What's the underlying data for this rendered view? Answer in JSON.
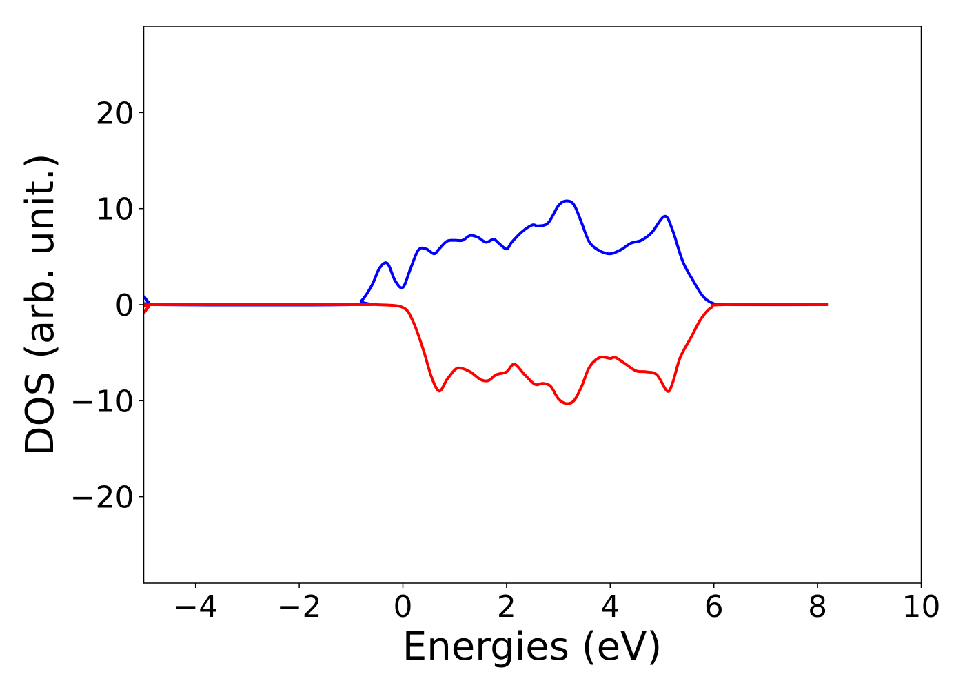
{
  "chart_data": {
    "type": "line",
    "title": "",
    "xlabel": "Energies (eV)",
    "ylabel": "DOS (arb. unit.)",
    "xlim": [
      -5,
      10
    ],
    "ylim": [
      -29,
      29
    ],
    "xticks": [
      -4,
      -2,
      0,
      2,
      4,
      6,
      8,
      10
    ],
    "xtick_labels": [
      "−4",
      "−2",
      "0",
      "2",
      "4",
      "6",
      "8",
      "10"
    ],
    "yticks": [
      20,
      10,
      0,
      -10,
      -20
    ],
    "ytick_labels": [
      "20",
      "10",
      "0",
      "−10",
      "−20"
    ],
    "grid": false,
    "legend": "none",
    "series": [
      {
        "color": "#0000ff",
        "x": [
          -5.0,
          -4.9,
          -4.8,
          -1.0,
          -0.8,
          -0.6,
          -0.45,
          -0.3,
          -0.15,
          0.0,
          0.15,
          0.3,
          0.45,
          0.6,
          0.7,
          0.85,
          1.0,
          1.15,
          1.3,
          1.45,
          1.6,
          1.75,
          1.85,
          2.0,
          2.1,
          2.3,
          2.5,
          2.6,
          2.8,
          3.0,
          3.15,
          3.3,
          3.45,
          3.6,
          3.8,
          4.0,
          4.2,
          4.4,
          4.6,
          4.8,
          5.05,
          5.2,
          5.4,
          5.6,
          5.8,
          6.0,
          6.2,
          8.2
        ],
        "y": [
          0.9,
          0.2,
          0.0,
          0.0,
          0.4,
          2.0,
          3.8,
          4.3,
          2.5,
          1.8,
          3.8,
          5.7,
          5.8,
          5.3,
          5.8,
          6.6,
          6.7,
          6.7,
          7.2,
          7.0,
          6.5,
          6.8,
          6.4,
          5.8,
          6.5,
          7.6,
          8.3,
          8.2,
          8.5,
          10.3,
          10.8,
          10.4,
          8.5,
          6.5,
          5.6,
          5.3,
          5.7,
          6.4,
          6.7,
          7.5,
          9.2,
          7.8,
          4.5,
          2.5,
          0.8,
          0.1,
          0.0,
          0.0
        ]
      },
      {
        "color": "#ff0000",
        "x": [
          -5.0,
          -4.9,
          -4.8,
          -1.0,
          -0.5,
          0.0,
          0.2,
          0.4,
          0.55,
          0.7,
          0.85,
          1.0,
          1.1,
          1.3,
          1.5,
          1.65,
          1.8,
          2.0,
          2.15,
          2.35,
          2.55,
          2.7,
          2.85,
          3.0,
          3.15,
          3.3,
          3.45,
          3.6,
          3.8,
          4.0,
          4.1,
          4.3,
          4.5,
          4.7,
          4.9,
          5.1,
          5.2,
          5.35,
          5.55,
          5.75,
          5.95,
          6.2,
          8.2
        ],
        "y": [
          -0.9,
          -0.2,
          0.0,
          0.0,
          0.0,
          -0.3,
          -1.8,
          -4.8,
          -7.5,
          -9.0,
          -7.8,
          -6.8,
          -6.6,
          -7.0,
          -7.8,
          -7.9,
          -7.3,
          -7.0,
          -6.2,
          -7.3,
          -8.3,
          -8.2,
          -8.5,
          -9.8,
          -10.3,
          -10.0,
          -8.5,
          -6.5,
          -5.5,
          -5.6,
          -5.5,
          -6.2,
          -6.9,
          -7.0,
          -7.3,
          -9.0,
          -8.2,
          -5.5,
          -3.5,
          -1.5,
          -0.3,
          0.0,
          0.0
        ]
      }
    ]
  }
}
